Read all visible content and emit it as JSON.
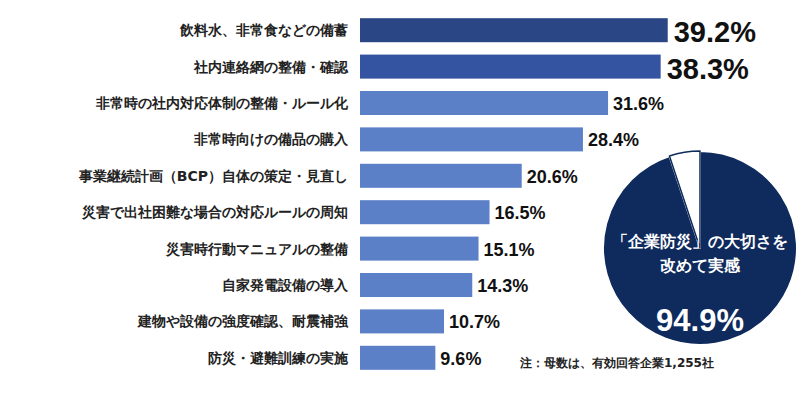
{
  "chart_data": [
    {
      "type": "bar",
      "orientation": "horizontal",
      "categories": [
        "飲料水、非常食などの備蓄",
        "社内連絡網の整備・確認",
        "非常時の社内対応体制の整備・ルール化",
        "非常時向けの備品の購入",
        "事業継続計画（BCP）自体の策定・見直し",
        "災害で出社困難な場合の対応ルールの周知",
        "災害時行動マニュアルの整備",
        "自家発電設備の導入",
        "建物や設備の強度確認、耐震補強",
        "防災・避難訓練の実施"
      ],
      "values": [
        39.2,
        38.3,
        31.6,
        28.4,
        20.6,
        16.5,
        15.1,
        14.3,
        10.7,
        9.6
      ],
      "value_labels": [
        "39.2%",
        "38.3%",
        "31.6%",
        "28.4%",
        "20.6%",
        "16.5%",
        "15.1%",
        "14.3%",
        "10.7%",
        "9.6%"
      ],
      "colors": [
        "#2b4684",
        "#3453a0",
        "#5b80c8",
        "#5b80c8",
        "#5b80c8",
        "#5b80c8",
        "#5b80c8",
        "#5b80c8",
        "#5b80c8",
        "#5b80c8"
      ],
      "xlim": [
        0,
        40
      ],
      "tick_labels": false,
      "data_labels": true,
      "annotations": [
        "注：母数は、有効回答企業1,255社"
      ]
    },
    {
      "type": "pie",
      "categories": [
        "「企業防災」の大切さを\n改めて実感",
        null
      ],
      "values": [
        94.9,
        5.1
      ],
      "value_labels": [
        "94.9%",
        null
      ],
      "colors": [
        "#0f2a5c",
        "#ffffff"
      ],
      "data_labels": true
    }
  ]
}
